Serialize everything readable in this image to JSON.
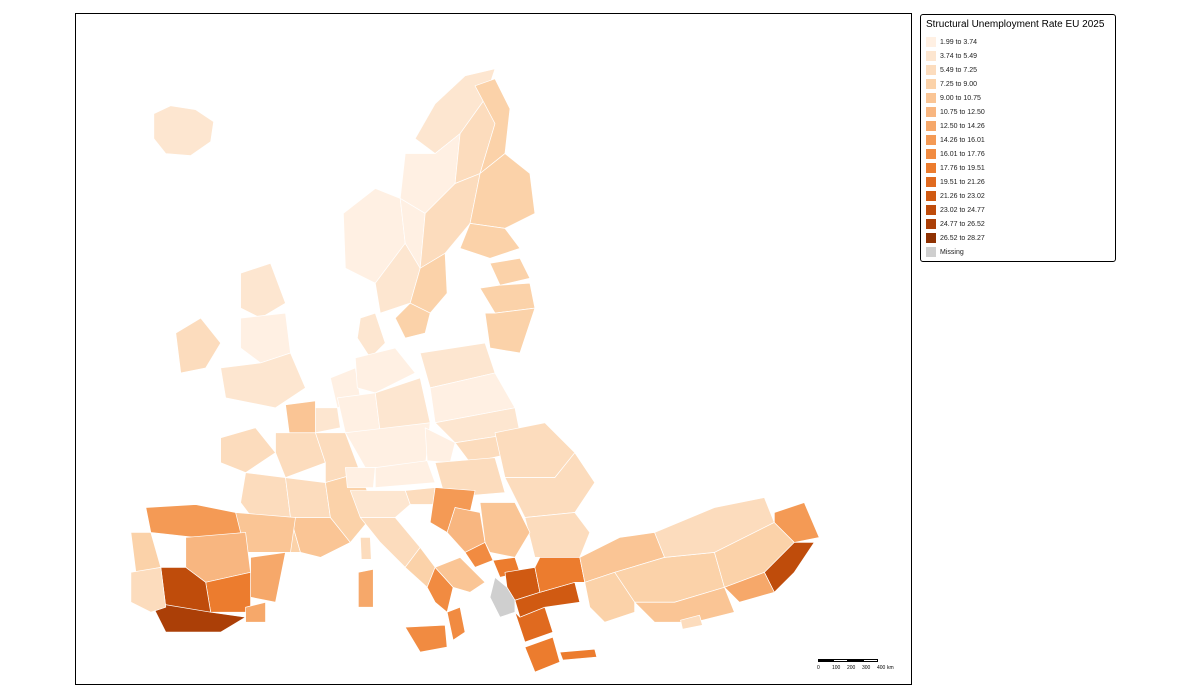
{
  "legend": {
    "title": "Structural Unemployment Rate EU 2025",
    "classes": [
      {
        "label": "1.99 to 3.74",
        "color": "#fff0e3"
      },
      {
        "label": "3.74 to 5.49",
        "color": "#fde6d0"
      },
      {
        "label": "5.49 to 7.25",
        "color": "#fcdcbd"
      },
      {
        "label": "7.25 to 9.00",
        "color": "#fbd2a9"
      },
      {
        "label": "9.00 to 10.75",
        "color": "#fac595"
      },
      {
        "label": "10.75 to 12.50",
        "color": "#f8b680"
      },
      {
        "label": "12.50 to 14.26",
        "color": "#f6a86a"
      },
      {
        "label": "14.26 to 16.01",
        "color": "#f49a55"
      },
      {
        "label": "16.01 to 17.76",
        "color": "#f18b41"
      },
      {
        "label": "17.76 to 19.51",
        "color": "#ec7c2e"
      },
      {
        "label": "19.51 to 21.26",
        "color": "#e06a1f"
      },
      {
        "label": "21.26 to 23.02",
        "color": "#d05a12"
      },
      {
        "label": "23.02 to 24.77",
        "color": "#bf4c0b"
      },
      {
        "label": "24.77 to 26.52",
        "color": "#ab3f07"
      },
      {
        "label": "26.52 to 28.27",
        "color": "#8f3203"
      }
    ],
    "missing": {
      "label": "Missing",
      "color": "#cfcfcf"
    }
  },
  "scalebar": {
    "ticks": [
      "0",
      "100",
      "200",
      "300",
      "400",
      "km"
    ]
  },
  "colors": {
    "border": "#ffffff",
    "frame": "#000000"
  }
}
